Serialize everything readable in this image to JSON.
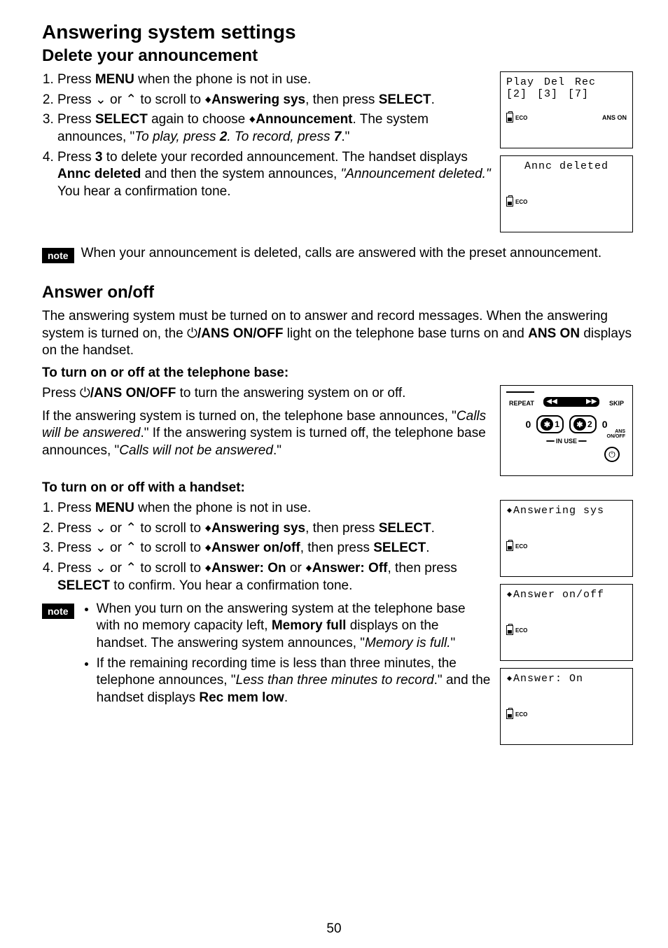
{
  "page_number": "50",
  "title": "Answering system settings",
  "section1": {
    "heading": "Delete your announcement",
    "step1_a": "Press ",
    "step1_menu": "MENU",
    "step1_b": " when the phone is not in use.",
    "step2_a": "Press ",
    "step2_b": " or ",
    "step2_c": " to scroll to ",
    "step2_target": "Answering sys",
    "step2_d": ", then press ",
    "step2_select": "SELECT",
    "step2_e": ".",
    "step3_a": "Press ",
    "step3_select": "SELECT",
    "step3_b": " again to choose ",
    "step3_target": "Announcement",
    "step3_c": ". The system announces, \"",
    "step3_quote": "To play, press ",
    "step3_two": "2",
    "step3_quote2": ". To record, press ",
    "step3_seven": "7",
    "step3_d": ".\"",
    "step4_a": "Press ",
    "step4_three": "3",
    "step4_b": " to delete your recorded announcement. The handset displays ",
    "step4_annc": "Annc deleted",
    "step4_c": " and then the system announces, ",
    "step4_quote": "\"Announcement deleted.\"",
    "step4_d": " You hear a confirmation tone.",
    "note_label": "note",
    "note_text": "When your announcement is deleted, calls are answered with the preset announcement."
  },
  "lcd1": {
    "r1c1": "Play",
    "r1c2": "Del",
    "r1c3": "Rec",
    "r2c1": "[2]",
    "r2c2": "[3]",
    "r2c3": "[7]",
    "eco": "ECO",
    "anson": "ANS ON"
  },
  "lcd2": {
    "line": "Annc deleted",
    "eco": "ECO"
  },
  "section2": {
    "heading": "Answer on/off",
    "para1_a": "The answering system must be turned on to answer and record messages. When the answering system is turned on, the ",
    "para1_btn": "/ANS ON/OFF",
    "para1_b": " light on the telephone base turns on and ",
    "para1_anson": "ANS ON",
    "para1_c": " displays on the handset.",
    "sub1": "To turn on or off at the telephone base:",
    "sub1_line_a": "Press ",
    "sub1_line_btn": "/ANS ON/OFF",
    "sub1_line_b": " to turn the answering system on or off.",
    "sub1_para_a": "If the answering system is turned on, the telephone base announces, \"",
    "sub1_para_q1": "Calls will be answered",
    "sub1_para_b": ".\" If the answering system is turned off, the telephone base announces, \"",
    "sub1_para_q2": "Calls will not be answered",
    "sub1_para_c": ".\"",
    "sub2": "To turn on or off with a handset:",
    "h_step1_a": "Press ",
    "h_step1_menu": "MENU",
    "h_step1_b": " when the phone is not in use.",
    "h_step2_a": "Press ",
    "h_step2_b": " or ",
    "h_step2_c": " to scroll to ",
    "h_step2_target": "Answering sys",
    "h_step2_d": ", then press ",
    "h_step2_select": "SELECT",
    "h_step2_e": ".",
    "h_step3_a": "Press ",
    "h_step3_b": " or ",
    "h_step3_c": " to scroll to ",
    "h_step3_target": "Answer on/off",
    "h_step3_d": ", then press ",
    "h_step3_select": "SELECT",
    "h_step3_e": ".",
    "h_step4_a": "Press ",
    "h_step4_b": " or ",
    "h_step4_c": " to scroll to ",
    "h_step4_on": "Answer: On",
    "h_step4_or": " or ",
    "h_step4_off": "Answer: Off",
    "h_step4_d": ", then press ",
    "h_step4_select": "SELECT",
    "h_step4_e": " to confirm. You hear a confirmation tone.",
    "note_label": "note",
    "note_b1_a": "When you turn on the answering system at the telephone base with no memory capacity left, ",
    "note_b1_mem": "Memory full",
    "note_b1_b": " displays on the handset. The answering system announces, \"",
    "note_b1_q": "Memory is full.",
    "note_b1_c": "\"",
    "note_b2_a": "If the remaining recording time is less than three minutes, the telephone announces, \"",
    "note_b2_q": "Less than three minutes to record",
    "note_b2_b": ".\" and the handset displays ",
    "note_b2_rec": "Rec mem low",
    "note_b2_c": "."
  },
  "base": {
    "repeat": "REPEAT",
    "skip": "SKIP",
    "zero_l": "0",
    "zero_r": "0",
    "bt1": "✱ 1",
    "bt2": "✱ 2",
    "inuse": "IN USE",
    "ans": "ANS\nON/OFF"
  },
  "lcd3": {
    "line": "Answering sys",
    "eco": "ECO"
  },
  "lcd4": {
    "line": "Answer on/off",
    "eco": "ECO"
  },
  "lcd5": {
    "line": "Answer: On",
    "eco": "ECO"
  },
  "icons": {
    "down": "⌄",
    "up": "⌃",
    "updown": "♦",
    "power": "⏻"
  }
}
